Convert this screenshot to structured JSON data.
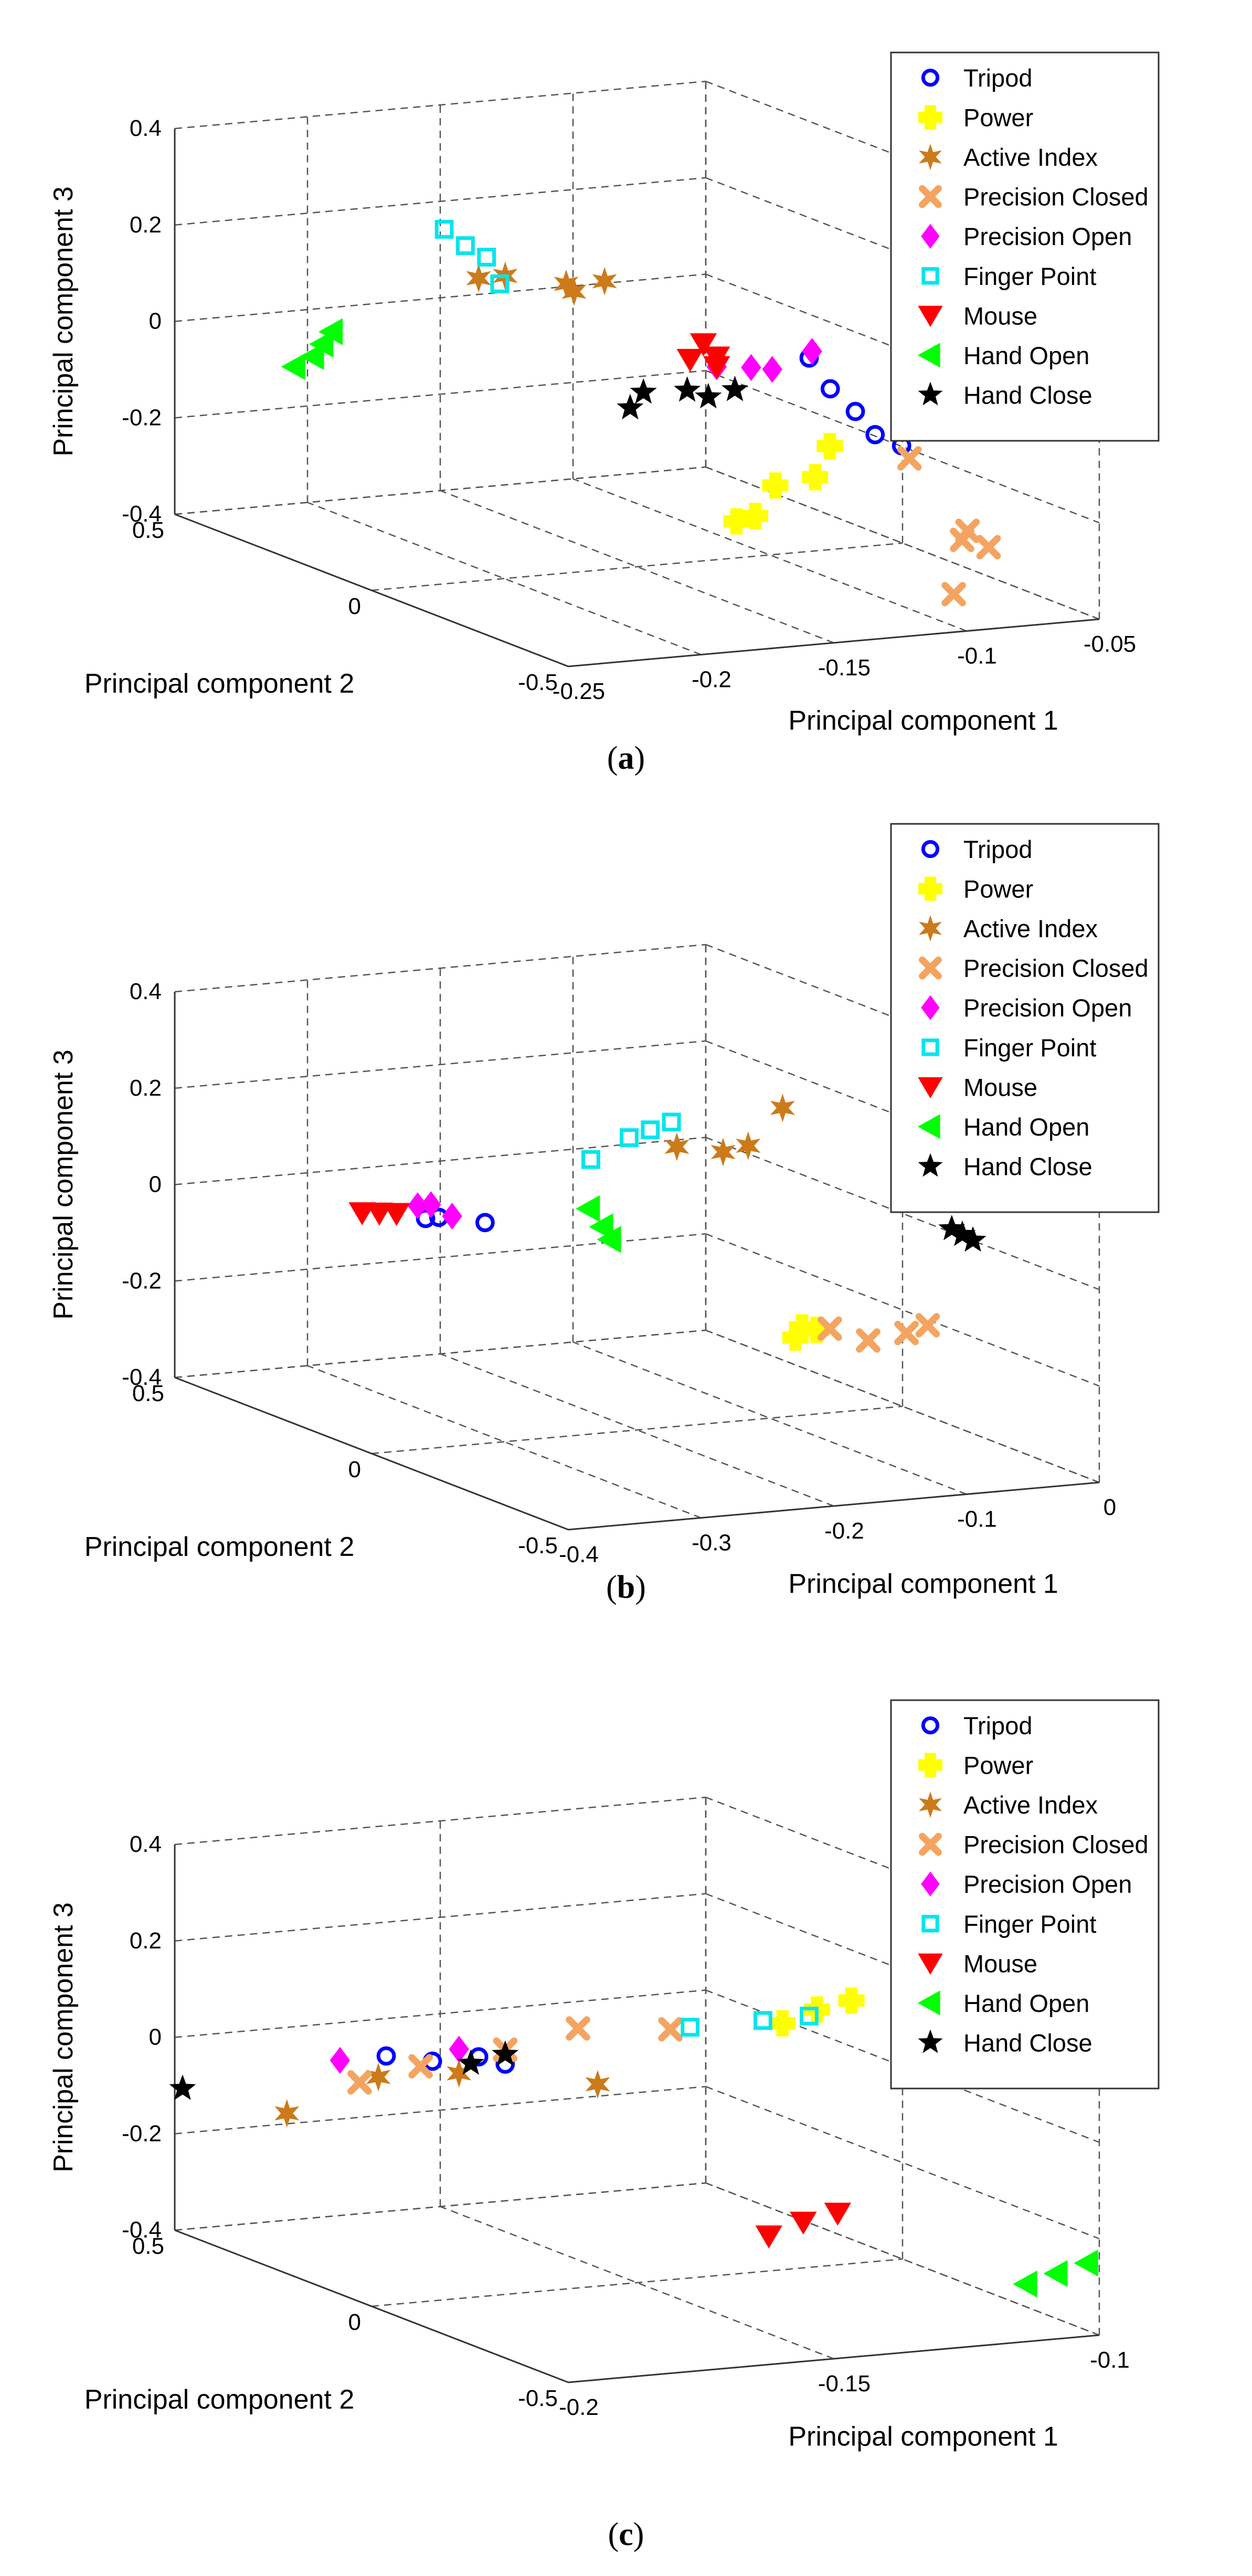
{
  "chart_data": [
    {
      "panel": "a",
      "type": "scatter",
      "caption_letter": "a",
      "xlabel": "Principal component 1",
      "ylabel": "Principal component 2",
      "zlabel": "Principal component 3",
      "xlim": [
        -0.25,
        -0.05
      ],
      "ylim": [
        -0.5,
        0.5
      ],
      "zlim": [
        -0.4,
        0.4
      ],
      "xticks": [
        "-0.25",
        "-0.2",
        "-0.15",
        "-0.1",
        "-0.05"
      ],
      "yticks": [
        "-0.5",
        "0",
        "0.5"
      ],
      "zticks": [
        "-0.4",
        "-0.2",
        "0",
        "0.2",
        "0.4"
      ],
      "grid": true,
      "legend_position": "top-right",
      "series": [
        {
          "name": "Tripod",
          "color": "#0000ff",
          "marker": "circle",
          "points": [
            [
              -0.1,
              -0.1,
              0.04
            ],
            [
              -0.095,
              -0.12,
              -0.02
            ],
            [
              -0.09,
              -0.15,
              -0.06
            ],
            [
              -0.087,
              -0.18,
              -0.1
            ],
            [
              -0.08,
              -0.2,
              -0.12
            ]
          ]
        },
        {
          "name": "Power",
          "color": "#ffff00",
          "marker": "plus",
          "points": [
            [
              -0.11,
              -0.22,
              -0.1
            ],
            [
              -0.12,
              -0.25,
              -0.15
            ],
            [
              -0.135,
              -0.25,
              -0.16
            ],
            [
              -0.15,
              -0.3,
              -0.2
            ],
            [
              -0.16,
              -0.32,
              -0.2
            ]
          ]
        },
        {
          "name": "Active Index",
          "color": "#cc7a1a",
          "marker": "star6",
          "points": [
            [
              -0.18,
              0.2,
              0.15
            ],
            [
              -0.17,
              0.2,
              0.15
            ],
            [
              -0.15,
              0.18,
              0.13
            ],
            [
              -0.15,
              0.16,
              0.12
            ],
            [
              -0.14,
              0.15,
              0.14
            ]
          ]
        },
        {
          "name": "Precision Closed",
          "color": "#f4a460",
          "marker": "x",
          "points": [
            [
              -0.08,
              -0.22,
              -0.14
            ],
            [
              -0.07,
              -0.3,
              -0.27
            ],
            [
              -0.065,
              -0.32,
              -0.3
            ],
            [
              -0.09,
              -0.4,
              -0.36
            ],
            [
              -0.075,
              -0.32,
              -0.28
            ]
          ]
        },
        {
          "name": "Precision Open",
          "color": "#ff00ff",
          "marker": "diamond",
          "points": [
            [
              -0.12,
              0.0,
              0.0
            ],
            [
              -0.11,
              -0.02,
              0.0
            ],
            [
              -0.105,
              -0.04,
              0.0
            ],
            [
              -0.09,
              -0.04,
              0.03
            ]
          ]
        },
        {
          "name": "Finger Point",
          "color": "#00e5ee",
          "marker": "square",
          "points": [
            [
              -0.19,
              0.22,
              0.25
            ],
            [
              -0.185,
              0.2,
              0.22
            ],
            [
              -0.18,
              0.18,
              0.2
            ],
            [
              -0.178,
              0.16,
              0.15
            ]
          ]
        },
        {
          "name": "Mouse",
          "color": "#ff0000",
          "marker": "triangle-down",
          "points": [
            [
              -0.13,
              0.0,
              0.02
            ],
            [
              -0.125,
              0.0,
              0.05
            ],
            [
              -0.12,
              0.0,
              0.02
            ],
            [
              -0.12,
              0.0,
              0.0
            ]
          ]
        },
        {
          "name": "Hand Open",
          "color": "#00ff00",
          "marker": "triangle-left",
          "points": [
            [
              -0.23,
              0.33,
              -0.05
            ],
            [
              -0.22,
              0.35,
              -0.04
            ],
            [
              -0.215,
              0.36,
              -0.02
            ],
            [
              -0.21,
              0.37,
              0.0
            ]
          ]
        },
        {
          "name": "Hand Close",
          "color": "#000000",
          "marker": "star5",
          "points": [
            [
              -0.16,
              -0.05,
              -0.05
            ],
            [
              -0.155,
              -0.05,
              -0.02
            ],
            [
              -0.14,
              -0.06,
              -0.02
            ],
            [
              -0.135,
              -0.08,
              -0.03
            ],
            [
              -0.125,
              -0.08,
              -0.02
            ]
          ]
        }
      ]
    },
    {
      "panel": "b",
      "type": "scatter",
      "caption_letter": "b",
      "xlabel": "Principal component 1",
      "ylabel": "Principal component 2",
      "zlabel": "Principal component 3",
      "xlim": [
        -0.4,
        0
      ],
      "ylim": [
        -0.5,
        0.5
      ],
      "zlim": [
        -0.4,
        0.4
      ],
      "xticks": [
        "-0.4",
        "-0.3",
        "-0.2",
        "-0.1",
        "0"
      ],
      "yticks": [
        "-0.5",
        "0",
        "0.5"
      ],
      "zticks": [
        "-0.4",
        "-0.2",
        "0",
        "0.2",
        "0.4"
      ],
      "grid": true,
      "legend_position": "top-right",
      "series": [
        {
          "name": "Tripod",
          "color": "#0000ff",
          "marker": "circle",
          "points": [
            [
              -0.3,
              0.2,
              0.0
            ],
            [
              -0.29,
              0.2,
              0.0
            ],
            [
              -0.27,
              0.15,
              0.0
            ]
          ]
        },
        {
          "name": "Power",
          "color": "#ffff00",
          "marker": "plus",
          "points": [
            [
              -0.14,
              -0.2,
              -0.16
            ],
            [
              -0.135,
              -0.2,
              -0.14
            ],
            [
              -0.13,
              -0.22,
              -0.14
            ]
          ]
        },
        {
          "name": "Active Index",
          "color": "#cc7a1a",
          "marker": "star6",
          "points": [
            [
              -0.17,
              0.0,
              0.18
            ],
            [
              -0.15,
              -0.05,
              0.18
            ],
            [
              -0.14,
              -0.08,
              0.2
            ],
            [
              -0.12,
              -0.1,
              0.28
            ]
          ]
        },
        {
          "name": "Precision Closed",
          "color": "#f4a460",
          "marker": "x",
          "points": [
            [
              -0.12,
              -0.22,
              -0.14
            ],
            [
              -0.1,
              -0.25,
              -0.16
            ],
            [
              -0.08,
              -0.28,
              -0.14
            ],
            [
              -0.07,
              -0.3,
              -0.12
            ]
          ]
        },
        {
          "name": "Precision Open",
          "color": "#ff00ff",
          "marker": "diamond",
          "points": [
            [
              -0.3,
              0.22,
              0.02
            ],
            [
              -0.29,
              0.22,
              0.02
            ],
            [
              -0.28,
              0.2,
              0.0
            ]
          ]
        },
        {
          "name": "Finger Point",
          "color": "#00e5ee",
          "marker": "square",
          "points": [
            [
              -0.22,
              0.05,
              0.15
            ],
            [
              -0.2,
              0.02,
              0.2
            ],
            [
              -0.19,
              0.0,
              0.22
            ],
            [
              -0.18,
              -0.02,
              0.24
            ]
          ]
        },
        {
          "name": "Mouse",
          "color": "#ff0000",
          "marker": "triangle-down",
          "points": [
            [
              -0.33,
              0.26,
              0.0
            ],
            [
              -0.32,
              0.25,
              0.0
            ],
            [
              -0.31,
              0.24,
              0.0
            ]
          ]
        },
        {
          "name": "Hand Open",
          "color": "#00ff00",
          "marker": "triangle-left",
          "points": [
            [
              -0.23,
              0.02,
              0.06
            ],
            [
              -0.22,
              0.02,
              0.02
            ],
            [
              -0.22,
              0.0,
              0.0
            ]
          ]
        },
        {
          "name": "Hand Close",
          "color": "#000000",
          "marker": "star5",
          "points": [
            [
              -0.04,
              -0.26,
              0.06
            ],
            [
              -0.035,
              -0.27,
              0.05
            ],
            [
              -0.03,
              -0.28,
              0.04
            ]
          ]
        }
      ]
    },
    {
      "panel": "c",
      "type": "scatter",
      "caption_letter": "c",
      "xlabel": "Principal component 1",
      "ylabel": "Principal component 2",
      "zlabel": "Principal component 3",
      "xlim": [
        -0.2,
        -0.1
      ],
      "ylim": [
        -0.5,
        0.5
      ],
      "zlim": [
        -0.4,
        0.4
      ],
      "xticks": [
        "-0.2",
        "-0.15",
        "-0.1"
      ],
      "yticks": [
        "-0.5",
        "0",
        "0.5"
      ],
      "zticks": [
        "-0.4",
        "-0.2",
        "0",
        "0.2",
        "0.4"
      ],
      "grid": true,
      "legend_position": "top-right",
      "series": [
        {
          "name": "Tripod",
          "color": "#0000ff",
          "marker": "circle",
          "points": [
            [
              -0.175,
              0.3,
              0.0
            ],
            [
              -0.17,
              0.25,
              0.0
            ],
            [
              -0.165,
              0.2,
              0.02
            ],
            [
              -0.16,
              0.2,
              0.0
            ]
          ]
        },
        {
          "name": "Power",
          "color": "#ffff00",
          "marker": "plus",
          "points": [
            [
              -0.13,
              -0.1,
              0.15
            ],
            [
              -0.125,
              -0.12,
              0.18
            ],
            [
              -0.12,
              -0.14,
              0.2
            ]
          ]
        },
        {
          "name": "Active Index",
          "color": "#cc7a1a",
          "marker": "star6",
          "points": [
            [
              -0.19,
              0.35,
              -0.12
            ],
            [
              -0.175,
              0.32,
              -0.05
            ],
            [
              -0.165,
              0.25,
              -0.03
            ],
            [
              -0.15,
              0.1,
              -0.02
            ]
          ]
        },
        {
          "name": "Precision Closed",
          "color": "#f4a460",
          "marker": "x",
          "points": [
            [
              -0.18,
              0.3,
              -0.05
            ],
            [
              -0.17,
              0.28,
              -0.02
            ],
            [
              -0.16,
              0.2,
              0.03
            ],
            [
              -0.15,
              0.15,
              0.08
            ],
            [
              -0.14,
              0.05,
              0.1
            ]
          ]
        },
        {
          "name": "Precision Open",
          "color": "#ff00ff",
          "marker": "diamond",
          "points": [
            [
              -0.18,
              0.35,
              -0.02
            ],
            [
              -0.165,
              0.25,
              0.02
            ]
          ]
        },
        {
          "name": "Finger Point",
          "color": "#00e5ee",
          "marker": "square",
          "points": [
            [
              -0.14,
              0.0,
              0.12
            ],
            [
              -0.13,
              -0.05,
              0.14
            ],
            [
              -0.125,
              -0.1,
              0.16
            ]
          ]
        },
        {
          "name": "Mouse",
          "color": "#ff0000",
          "marker": "triangle-down",
          "points": [
            [
              -0.14,
              -0.2,
              -0.25
            ],
            [
              -0.135,
              -0.22,
              -0.22
            ],
            [
              -0.13,
              -0.24,
              -0.2
            ]
          ]
        },
        {
          "name": "Hand Open",
          "color": "#00ff00",
          "marker": "triangle-left",
          "points": [
            [
              -0.11,
              -0.45,
              -0.3
            ],
            [
              -0.105,
              -0.46,
              -0.28
            ],
            [
              -0.1,
              -0.47,
              -0.26
            ]
          ]
        },
        {
          "name": "Hand Close",
          "color": "#000000",
          "marker": "star5",
          "points": [
            [
              -0.2,
              0.48,
              -0.1
            ],
            [
              -0.165,
              0.22,
              0.0
            ],
            [
              -0.16,
              0.2,
              0.02
            ]
          ]
        }
      ]
    }
  ]
}
